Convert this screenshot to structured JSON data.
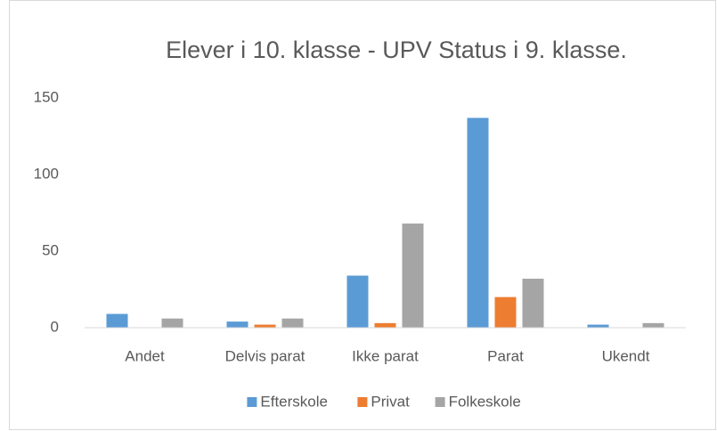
{
  "chart_data": {
    "type": "bar",
    "title": "Elever i 10. klasse - UPV Status i 9. klasse.",
    "categories": [
      "Andet",
      "Delvis parat",
      "Ikke parat",
      "Parat",
      "Ukendt"
    ],
    "series": [
      {
        "name": "Efterskole",
        "color": "#5b9bd5",
        "values": [
          9,
          4,
          34,
          137,
          2
        ]
      },
      {
        "name": "Privat",
        "color": "#ed7d31",
        "values": [
          0,
          2,
          3,
          20,
          0
        ]
      },
      {
        "name": "Folkeskole",
        "color": "#a5a5a5",
        "values": [
          6,
          6,
          68,
          32,
          3
        ]
      }
    ],
    "ylim": [
      0,
      150
    ],
    "yticks": [
      0,
      50,
      100,
      150
    ],
    "grid": false,
    "legend": "bottom"
  }
}
